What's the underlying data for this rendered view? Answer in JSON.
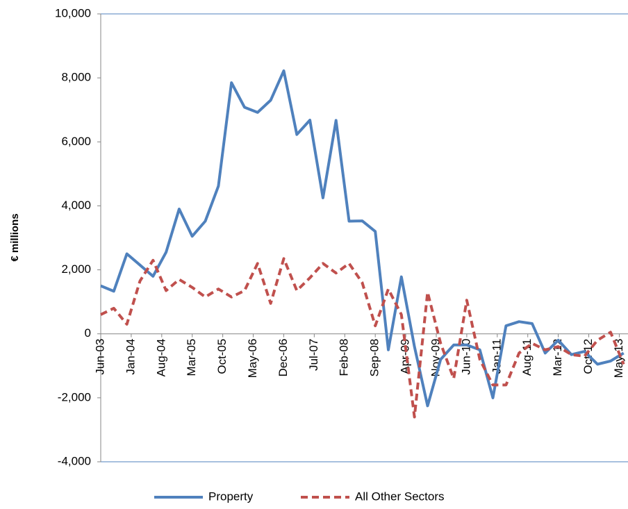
{
  "chart_data": {
    "type": "line",
    "y_label": "€ millions",
    "xlim": [
      0,
      121
    ],
    "xticks": [
      {
        "value": 0,
        "label": "Jun-03"
      },
      {
        "value": 7,
        "label": "Jan-04"
      },
      {
        "value": 14,
        "label": "Aug-04"
      },
      {
        "value": 21,
        "label": "Mar-05"
      },
      {
        "value": 28,
        "label": "Oct-05"
      },
      {
        "value": 35,
        "label": "May-06"
      },
      {
        "value": 42,
        "label": "Dec-06"
      },
      {
        "value": 49,
        "label": "Jul-07"
      },
      {
        "value": 56,
        "label": "Feb-08"
      },
      {
        "value": 63,
        "label": "Sep-08"
      },
      {
        "value": 70,
        "label": "Apr-09"
      },
      {
        "value": 77,
        "label": "Nov-09"
      },
      {
        "value": 84,
        "label": "Jun-10"
      },
      {
        "value": 91,
        "label": "Jan-11"
      },
      {
        "value": 98,
        "label": "Aug-11"
      },
      {
        "value": 105,
        "label": "Mar-12"
      },
      {
        "value": 112,
        "label": "Oct-12"
      },
      {
        "value": 119,
        "label": "May-13"
      }
    ],
    "ylim": [
      -4000,
      10000
    ],
    "yticks": [
      {
        "value": -4000,
        "label": "-4,000"
      },
      {
        "value": -2000,
        "label": "-2,000"
      },
      0,
      {
        "value": 2000,
        "label": "2,000"
      },
      {
        "value": 4000,
        "label": "4,000"
      },
      {
        "value": 6000,
        "label": "6,000"
      },
      {
        "value": 8000,
        "label": "8,000"
      },
      {
        "value": 10000,
        "label": "10,000"
      }
    ],
    "x": [
      0,
      3,
      6,
      9,
      12,
      15,
      18,
      21,
      24,
      27,
      30,
      33,
      36,
      39,
      42,
      45,
      48,
      51,
      54,
      57,
      60,
      63,
      66,
      69,
      72,
      75,
      78,
      81,
      84,
      87,
      90,
      93,
      96,
      99,
      102,
      105,
      108,
      111,
      114,
      117,
      120
    ],
    "series": [
      {
        "name": "Property",
        "color": "#4f81bd",
        "dashed": false,
        "values": [
          1500,
          1330,
          2500,
          2150,
          1800,
          2550,
          3900,
          3050,
          3520,
          4620,
          7850,
          7080,
          6920,
          7300,
          8220,
          6230,
          6680,
          4250,
          6670,
          3520,
          3530,
          3200,
          -500,
          1780,
          -400,
          -2250,
          -800,
          -350,
          -350,
          -500,
          -2000,
          250,
          380,
          320,
          -600,
          -200,
          -650,
          -550,
          -950,
          -850,
          -600
        ]
      },
      {
        "name": "All Other Sectors",
        "color": "#c0504d",
        "dashed": true,
        "values": [
          600,
          800,
          300,
          1650,
          2300,
          1350,
          1700,
          1450,
          1150,
          1400,
          1150,
          1350,
          2200,
          950,
          2350,
          1350,
          1750,
          2200,
          1900,
          2200,
          1600,
          250,
          1400,
          600,
          -2600,
          1300,
          -300,
          -1400,
          1050,
          -800,
          -1600,
          -1600,
          -600,
          -300,
          -500,
          -400,
          -650,
          -700,
          -200,
          50,
          -950
        ]
      }
    ]
  }
}
